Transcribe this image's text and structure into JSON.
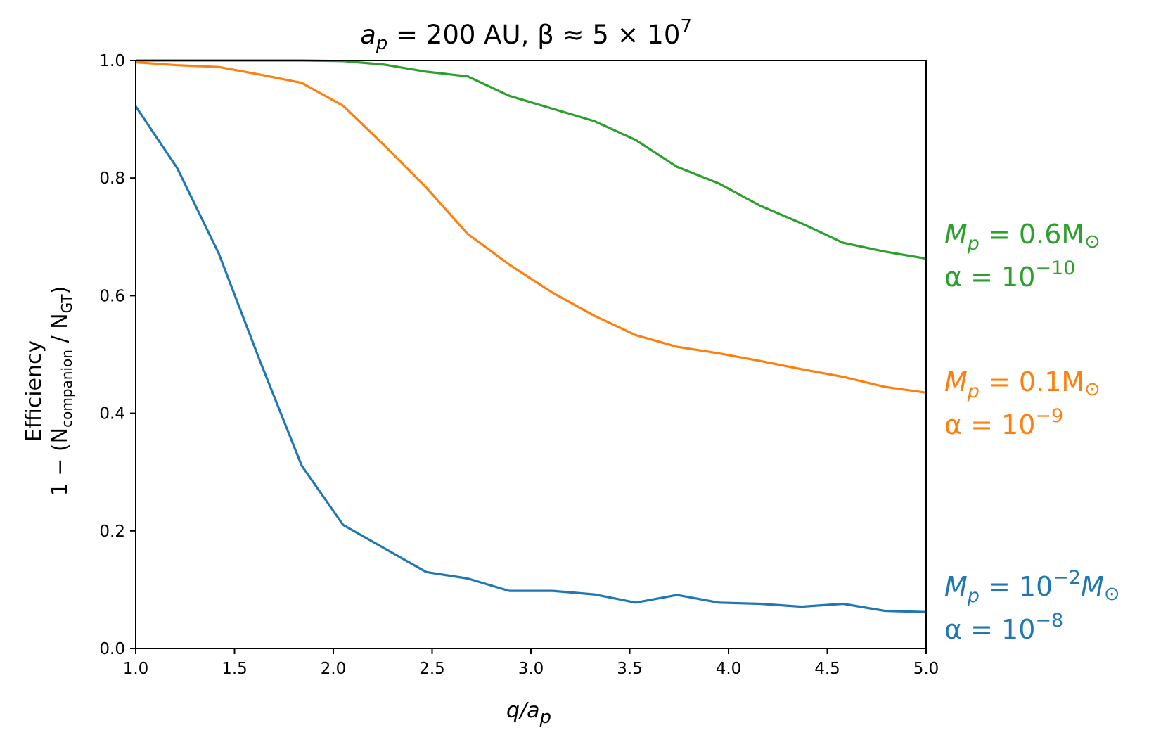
{
  "chart_data": {
    "type": "line",
    "title": {
      "main": "a",
      "main_sub": "p",
      "rest": " = 200 AU,  β ≈ 5 × 10",
      "rest_sup": "7"
    },
    "xlabel": {
      "main": "q/a",
      "sub": "p"
    },
    "ylabel": {
      "line1": "Efficiency",
      "line2_pre": "1 − (N",
      "line2_sub1": "companion",
      "line2_mid": " / N",
      "line2_sub2": "GT",
      "line2_post": ")"
    },
    "xlim": [
      1.0,
      5.0
    ],
    "ylim": [
      0.0,
      1.0
    ],
    "x_ticks": [
      "1.0",
      "1.5",
      "2.0",
      "2.5",
      "3.0",
      "3.5",
      "4.0",
      "4.5",
      "5.0"
    ],
    "y_ticks": [
      "0.0",
      "0.2",
      "0.4",
      "0.6",
      "0.8",
      "1.0"
    ],
    "grid": false,
    "legend": "none",
    "x": [
      1.0,
      1.21,
      1.42,
      1.63,
      1.84,
      2.05,
      2.26,
      2.47,
      2.68,
      2.89,
      3.11,
      3.32,
      3.53,
      3.74,
      3.95,
      4.16,
      4.37,
      4.58,
      4.79,
      5.0
    ],
    "series": [
      {
        "color": "#2ca02c",
        "values": [
          1.0,
          1.0,
          1.0,
          1.0,
          1.0,
          0.999,
          0.993,
          0.981,
          0.973,
          0.94,
          0.918,
          0.897,
          0.865,
          0.819,
          0.791,
          0.753,
          0.723,
          0.69,
          0.675,
          0.663
        ]
      },
      {
        "color": "#ff7f0e",
        "values": [
          0.997,
          0.992,
          0.989,
          0.976,
          0.962,
          0.923,
          0.855,
          0.784,
          0.705,
          0.653,
          0.605,
          0.566,
          0.533,
          0.513,
          0.502,
          0.489,
          0.475,
          0.462,
          0.445,
          0.435
        ]
      },
      {
        "color": "#1f77b4",
        "values": [
          0.922,
          0.817,
          0.672,
          0.488,
          0.311,
          0.21,
          0.17,
          0.13,
          0.119,
          0.098,
          0.098,
          0.092,
          0.078,
          0.091,
          0.078,
          0.076,
          0.071,
          0.076,
          0.064,
          0.062
        ]
      }
    ],
    "annotations": [
      {
        "color": "#2ca02c",
        "line1": {
          "pre": "M",
          "sub": "p",
          "mid": " = 0.6M",
          "sup": "",
          "post": "",
          "end_sub": "⊙"
        },
        "line2": {
          "pre": "α = 10",
          "sup": "−10"
        }
      },
      {
        "color": "#ff7f0e",
        "line1": {
          "pre": "M",
          "sub": "p",
          "mid": " = 0.1M",
          "sup": "",
          "post": "",
          "end_sub": "⊙"
        },
        "line2": {
          "pre": "α = 10",
          "sup": "−9"
        }
      },
      {
        "color": "#1f77b4",
        "line1": {
          "pre": "M",
          "sub": "p",
          "mid": " = 10",
          "sup": "−2",
          "post": "M",
          "end_sub": "⊙"
        },
        "line2": {
          "pre": "α = 10",
          "sup": "−8"
        }
      }
    ]
  }
}
